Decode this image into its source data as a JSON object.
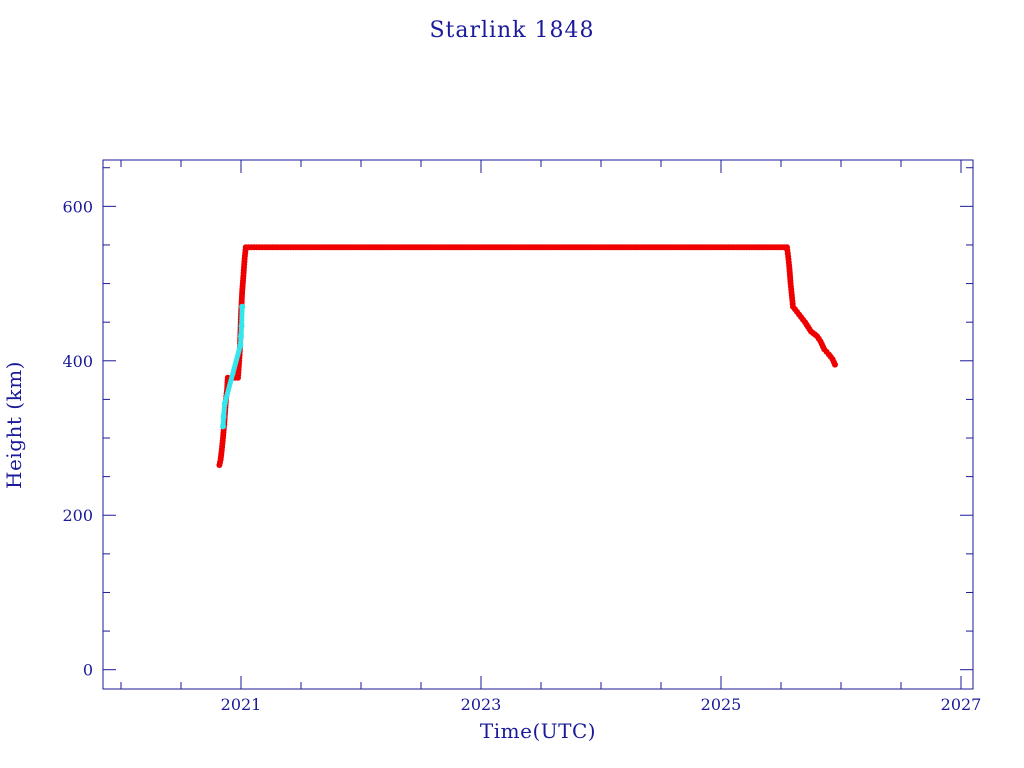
{
  "chart_data": {
    "type": "scatter",
    "title": "Starlink 1848",
    "xlabel": "Time(UTC)",
    "ylabel": "Height (km)",
    "xlim": [
      2019.85,
      2027.1
    ],
    "ylim": [
      -25,
      660
    ],
    "x_ticks": [
      2021,
      2023,
      2025,
      2027
    ],
    "y_ticks": [
      0,
      200,
      400,
      600
    ],
    "grid": false,
    "legend": "none",
    "colors": {
      "axis": "#1a1a9a",
      "primary_series": "#ee0000",
      "secondary_series": "#33e6ee"
    },
    "series": [
      {
        "color": "#ee0000",
        "points": [
          [
            2020.82,
            265
          ],
          [
            2020.83,
            272
          ],
          [
            2020.84,
            285
          ],
          [
            2020.85,
            300
          ],
          [
            2020.86,
            318
          ],
          [
            2020.875,
            350
          ],
          [
            2020.885,
            365
          ],
          [
            2020.89,
            378
          ],
          [
            2020.92,
            378
          ],
          [
            2020.95,
            378
          ],
          [
            2020.975,
            378
          ],
          [
            2020.985,
            400
          ],
          [
            2020.99,
            412
          ],
          [
            2021.0,
            460
          ],
          [
            2021.01,
            490
          ],
          [
            2021.02,
            510
          ],
          [
            2021.03,
            532
          ],
          [
            2021.04,
            547
          ],
          [
            2021.2,
            547
          ],
          [
            2021.5,
            547
          ],
          [
            2022.0,
            547
          ],
          [
            2022.5,
            547
          ],
          [
            2023.0,
            547
          ],
          [
            2023.5,
            547
          ],
          [
            2024.0,
            547
          ],
          [
            2024.5,
            547
          ],
          [
            2025.0,
            547
          ],
          [
            2025.3,
            547
          ],
          [
            2025.55,
            547
          ],
          [
            2025.56,
            535
          ],
          [
            2025.57,
            520
          ],
          [
            2025.58,
            500
          ],
          [
            2025.59,
            485
          ],
          [
            2025.6,
            470
          ],
          [
            2025.65,
            460
          ],
          [
            2025.7,
            450
          ],
          [
            2025.75,
            438
          ],
          [
            2025.8,
            432
          ],
          [
            2025.83,
            425
          ],
          [
            2025.86,
            415
          ],
          [
            2025.9,
            408
          ],
          [
            2025.93,
            402
          ],
          [
            2025.95,
            395
          ]
        ]
      },
      {
        "color": "#33e6ee",
        "points": [
          [
            2020.85,
            315
          ],
          [
            2020.855,
            328
          ],
          [
            2020.865,
            345
          ],
          [
            2020.995,
            420
          ],
          [
            2021.0,
            432
          ],
          [
            2021.005,
            445
          ],
          [
            2021.01,
            470
          ]
        ]
      }
    ]
  }
}
